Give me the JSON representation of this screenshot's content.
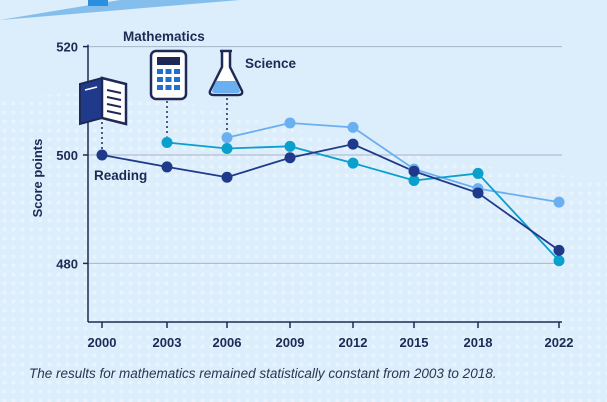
{
  "chart_data": {
    "type": "line",
    "title": "",
    "xlabel": "",
    "ylabel": "Score points",
    "ylim": [
      470,
      520
    ],
    "yticks": [
      480,
      500,
      520
    ],
    "categories": [
      "2000",
      "2003",
      "2006",
      "2009",
      "2012",
      "2015",
      "2018",
      "2022"
    ],
    "grid": true,
    "series": [
      {
        "name": "Reading",
        "color": "#1f3a8a",
        "icon": "book-icon",
        "values": [
          500,
          497.8,
          495.9,
          499.5,
          502,
          497,
          493,
          482.4
        ]
      },
      {
        "name": "Mathematics",
        "color": "#0aa0cc",
        "icon": "calculator-icon",
        "values": [
          null,
          502.3,
          501.2,
          501.6,
          498.5,
          495.3,
          496.6,
          480.5
        ]
      },
      {
        "name": "Science",
        "color": "#6aaff0",
        "icon": "flask-icon",
        "values": [
          null,
          null,
          503.2,
          505.9,
          505.1,
          497.4,
          493.8,
          491.3
        ]
      }
    ],
    "annotation": "The results for mathematics remained statistically constant from 2003 to 2018."
  }
}
